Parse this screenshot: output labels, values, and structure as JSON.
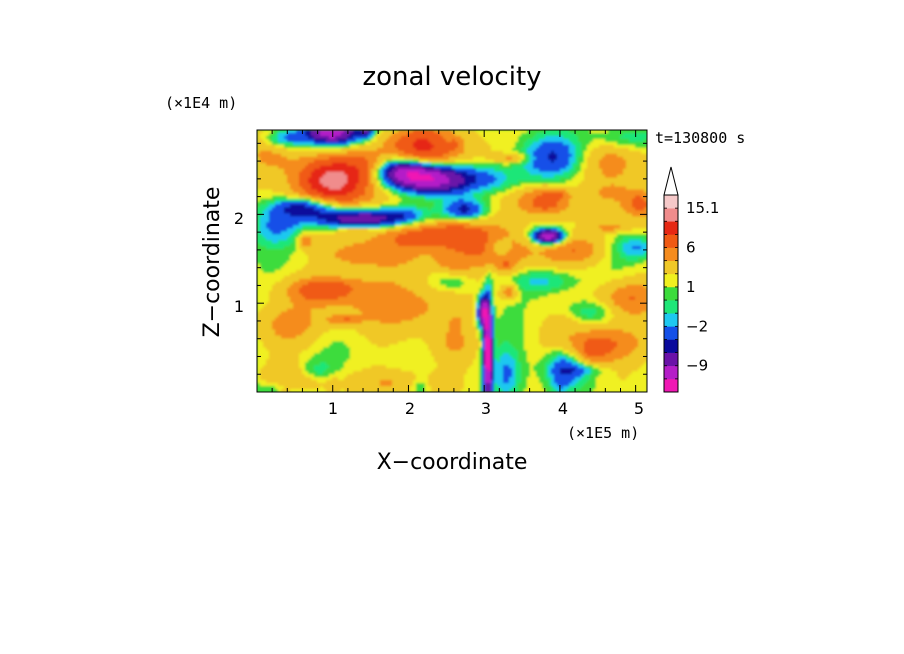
{
  "chart_data": {
    "type": "heatmap",
    "title": "zonal velocity",
    "xlabel": "X−coordinate",
    "ylabel": "Z−coordinate",
    "x_unit": "(×1E5 m)",
    "y_unit": "(×1E4 m)",
    "time_label": "t=130800 s",
    "xlim": [
      0,
      5.15
    ],
    "ylim": [
      0,
      2.95
    ],
    "x_ticks": [
      1,
      2,
      3,
      4,
      5
    ],
    "y_ticks": [
      1,
      2
    ],
    "colorbar": {
      "levels": [
        -15,
        -12,
        -9,
        -6,
        -4,
        -2,
        -1,
        0,
        1,
        2,
        4,
        6,
        9,
        12,
        15.1
      ],
      "labels": [
        {
          "value": 15.1,
          "text": "15.1"
        },
        {
          "value": 6,
          "text": "6"
        },
        {
          "value": 1,
          "text": "1"
        },
        {
          "value": -2,
          "text": "−2"
        },
        {
          "value": -9,
          "text": "−9"
        }
      ],
      "colors": [
        "#f018b4",
        "#b41ec8",
        "#6a12a8",
        "#0a0a9c",
        "#1450e8",
        "#1ec8f0",
        "#1ee678",
        "#3cdc3c",
        "#f0f020",
        "#f0c828",
        "#f58c1e",
        "#f05a14",
        "#e62814",
        "#f08c8c",
        "#f5c8c8"
      ]
    },
    "features": [
      {
        "x": 1.0,
        "z": 2.4,
        "value": 7
      },
      {
        "x": 2.2,
        "z": 2.75,
        "value": 6
      },
      {
        "x": 3.75,
        "z": 2.15,
        "value": 6
      },
      {
        "x": 2.25,
        "z": 2.4,
        "value": -12
      },
      {
        "x": 1.0,
        "z": 2.9,
        "value": -11
      },
      {
        "x": 1.3,
        "z": 1.95,
        "value": -9
      },
      {
        "x": 3.85,
        "z": 1.75,
        "value": -12
      },
      {
        "x": 3.9,
        "z": 2.65,
        "value": -5
      },
      {
        "x": 0.9,
        "z": 1.15,
        "value": 5
      },
      {
        "x": 2.35,
        "z": 1.75,
        "value": 6
      },
      {
        "x": 3.05,
        "z": 0.4,
        "value": -14
      },
      {
        "x": 4.2,
        "z": 0.15,
        "value": -3
      },
      {
        "x": 3.25,
        "z": 0.15,
        "value": -2
      }
    ]
  }
}
